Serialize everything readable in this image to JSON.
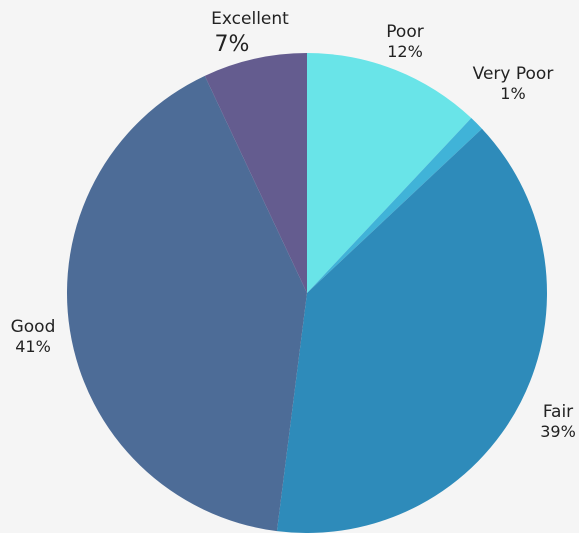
{
  "chart_data": {
    "type": "pie",
    "title": "",
    "start": "12 o'clock",
    "direction": "clockwise",
    "slices": [
      {
        "label": "Poor",
        "value": 12,
        "value_label": "12%",
        "color": "#69E4E8"
      },
      {
        "label": "Very Poor",
        "value": 1,
        "value_label": "1%",
        "color": "#40B3D8"
      },
      {
        "label": "Fair",
        "value": 39,
        "value_label": "39%",
        "color": "#2E8BBA"
      },
      {
        "label": "Good",
        "value": 41,
        "value_label": "41%",
        "color": "#4D6C97"
      },
      {
        "label": "Excellent",
        "value": 7,
        "value_label": "7%",
        "color": "#645C8F"
      }
    ]
  }
}
